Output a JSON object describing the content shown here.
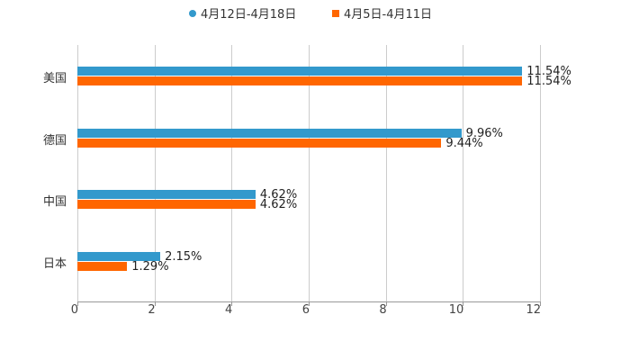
{
  "chart_data": {
    "type": "bar",
    "orientation": "horizontal",
    "title": "",
    "xlabel": "",
    "ylabel": "",
    "xlim": [
      0,
      12
    ],
    "x_ticks": [
      "0",
      "2",
      "4",
      "6",
      "8",
      "10",
      "12"
    ],
    "grid": true,
    "legend_position": "top",
    "categories": [
      "美国",
      "德国",
      "中国",
      "日本"
    ],
    "series": [
      {
        "name": "4月12日-4月18日",
        "color": "#3399cc",
        "values": [
          11.54,
          9.96,
          4.62,
          2.15
        ],
        "labels": [
          "11.54%",
          "9.96%",
          "4.62%",
          "2.15%"
        ]
      },
      {
        "name": "4月5日-4月11日",
        "color": "#ff6600",
        "values": [
          11.54,
          9.44,
          4.62,
          1.29
        ],
        "labels": [
          "11.54%",
          "9.44%",
          "4.62%",
          "1.29%"
        ]
      }
    ]
  },
  "legend": [
    {
      "label": "4月12日-4月18日",
      "color": "#3399cc"
    },
    {
      "label": "4月5日-4月11日",
      "color": "#ff6600"
    }
  ]
}
